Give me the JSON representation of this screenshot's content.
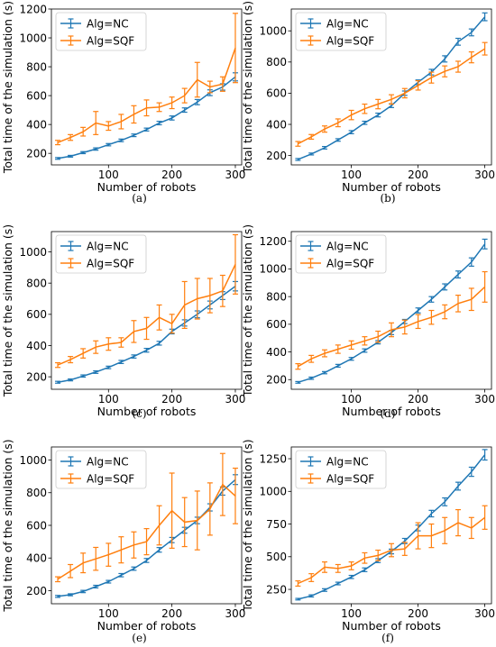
{
  "figure": {
    "background": "#ffffff"
  },
  "style": {
    "nc_color": "#1f77b4",
    "sqf_color": "#ff7f0e"
  },
  "chart_data": [
    {
      "panel": "a",
      "caption": "(a)",
      "type": "line",
      "xlabel": "Number of robots",
      "ylabel": "Total time of the simulation (s)",
      "xlim": [
        10,
        310
      ],
      "ylim": [
        120,
        1200
      ],
      "xticks": [
        100,
        200,
        300
      ],
      "yticks": [
        200,
        400,
        600,
        800,
        1000,
        1200
      ],
      "legend": {
        "position": "top-left",
        "entries": [
          "Alg=NC",
          "Alg=SQF"
        ]
      },
      "x": [
        20,
        40,
        60,
        80,
        100,
        120,
        140,
        160,
        180,
        200,
        220,
        240,
        260,
        280,
        300
      ],
      "series": [
        {
          "name": "Alg=NC",
          "values": [
            165,
            180,
            205,
            230,
            260,
            290,
            325,
            365,
            410,
            445,
            500,
            555,
            620,
            660,
            730
          ],
          "errors": [
            6,
            6,
            7,
            8,
            8,
            9,
            9,
            10,
            12,
            14,
            15,
            18,
            20,
            22,
            28
          ]
        },
        {
          "name": "Alg=SQF",
          "values": [
            275,
            310,
            350,
            410,
            390,
            420,
            470,
            515,
            520,
            550,
            600,
            710,
            660,
            680,
            930
          ],
          "errors": [
            15,
            20,
            30,
            80,
            30,
            50,
            60,
            55,
            30,
            40,
            50,
            120,
            40,
            50,
            240
          ]
        }
      ]
    },
    {
      "panel": "b",
      "caption": "(b)",
      "type": "line",
      "xlabel": "Number of robots",
      "ylabel": "Total time of the simulation (s)",
      "xlim": [
        10,
        310
      ],
      "ylim": [
        140,
        1140
      ],
      "xticks": [
        100,
        200,
        300
      ],
      "yticks": [
        200,
        400,
        600,
        800,
        1000
      ],
      "legend": {
        "position": "top-left",
        "entries": [
          "Alg=NC",
          "Alg=SQF"
        ]
      },
      "x": [
        20,
        40,
        60,
        80,
        100,
        120,
        140,
        160,
        180,
        200,
        220,
        240,
        260,
        280,
        300
      ],
      "series": [
        {
          "name": "Alg=NC",
          "values": [
            175,
            210,
            250,
            300,
            350,
            410,
            460,
            520,
            600,
            670,
            735,
            820,
            930,
            990,
            1090
          ],
          "errors": [
            6,
            6,
            8,
            8,
            10,
            10,
            12,
            12,
            14,
            15,
            18,
            20,
            22,
            22,
            25
          ]
        },
        {
          "name": "Alg=SQF",
          "values": [
            275,
            320,
            370,
            410,
            460,
            500,
            530,
            560,
            600,
            650,
            700,
            740,
            770,
            830,
            885
          ],
          "errors": [
            15,
            15,
            20,
            25,
            30,
            30,
            30,
            30,
            30,
            30,
            35,
            35,
            35,
            35,
            40
          ]
        }
      ]
    },
    {
      "panel": "c",
      "caption": "(c)",
      "type": "line",
      "xlabel": "Number of robots",
      "ylabel": "Total time of the simulation (s)",
      "xlim": [
        10,
        310
      ],
      "ylim": [
        120,
        1130
      ],
      "xticks": [
        100,
        200,
        300
      ],
      "yticks": [
        200,
        400,
        600,
        800,
        1000
      ],
      "legend": {
        "position": "top-left",
        "entries": [
          "Alg=NC",
          "Alg=SQF"
        ]
      },
      "x": [
        20,
        40,
        60,
        80,
        100,
        120,
        140,
        160,
        180,
        200,
        220,
        240,
        260,
        280,
        300
      ],
      "series": [
        {
          "name": "Alg=NC",
          "values": [
            165,
            180,
            205,
            230,
            260,
            295,
            330,
            370,
            415,
            490,
            545,
            600,
            660,
            720,
            780
          ],
          "errors": [
            6,
            6,
            7,
            8,
            8,
            10,
            10,
            12,
            12,
            15,
            20,
            22,
            25,
            25,
            30
          ]
        },
        {
          "name": "Alg=SQF",
          "values": [
            275,
            310,
            350,
            390,
            410,
            420,
            490,
            510,
            580,
            540,
            660,
            700,
            720,
            750,
            920
          ],
          "errors": [
            15,
            20,
            30,
            40,
            40,
            30,
            70,
            70,
            80,
            60,
            150,
            130,
            110,
            100,
            190
          ]
        }
      ]
    },
    {
      "panel": "d",
      "caption": "(d)",
      "type": "line",
      "xlabel": "Number of robots",
      "ylabel": "Total time of the simulation (s)",
      "xlim": [
        10,
        310
      ],
      "ylim": [
        130,
        1270
      ],
      "xticks": [
        100,
        200,
        300
      ],
      "yticks": [
        200,
        400,
        600,
        800,
        1000,
        1200
      ],
      "legend": {
        "position": "top-left",
        "entries": [
          "Alg=NC",
          "Alg=SQF"
        ]
      },
      "x": [
        20,
        40,
        60,
        80,
        100,
        120,
        140,
        160,
        180,
        200,
        220,
        240,
        260,
        280,
        300
      ],
      "series": [
        {
          "name": "Alg=NC",
          "values": [
            180,
            210,
            250,
            300,
            350,
            410,
            470,
            540,
            620,
            700,
            780,
            870,
            960,
            1050,
            1180
          ],
          "errors": [
            6,
            8,
            8,
            10,
            10,
            12,
            12,
            15,
            15,
            18,
            20,
            22,
            25,
            30,
            35
          ]
        },
        {
          "name": "Alg=SQF",
          "values": [
            295,
            350,
            390,
            420,
            450,
            480,
            510,
            560,
            580,
            620,
            650,
            690,
            750,
            780,
            870
          ],
          "errors": [
            20,
            25,
            25,
            30,
            30,
            30,
            40,
            50,
            50,
            50,
            50,
            50,
            60,
            80,
            110
          ]
        }
      ]
    },
    {
      "panel": "e",
      "caption": "(e)",
      "type": "line",
      "xlabel": "Number of robots",
      "ylabel": "Total time of the simulation (s)",
      "xlim": [
        10,
        310
      ],
      "ylim": [
        120,
        1080
      ],
      "xticks": [
        100,
        200,
        300
      ],
      "yticks": [
        200,
        400,
        600,
        800,
        1000
      ],
      "legend": {
        "position": "top-left",
        "entries": [
          "Alg=NC",
          "Alg=SQF"
        ]
      },
      "x": [
        20,
        40,
        60,
        80,
        100,
        120,
        140,
        160,
        180,
        200,
        220,
        240,
        260,
        280,
        300
      ],
      "series": [
        {
          "name": "Alg=NC",
          "values": [
            165,
            175,
            195,
            225,
            255,
            295,
            335,
            385,
            450,
            510,
            570,
            630,
            710,
            810,
            880
          ],
          "errors": [
            6,
            6,
            7,
            8,
            8,
            10,
            10,
            12,
            14,
            16,
            18,
            20,
            22,
            25,
            30
          ]
        },
        {
          "name": "Alg=SQF",
          "values": [
            270,
            320,
            370,
            395,
            420,
            450,
            480,
            500,
            600,
            690,
            620,
            630,
            700,
            850,
            780
          ],
          "errors": [
            15,
            40,
            60,
            70,
            70,
            80,
            80,
            80,
            120,
            230,
            150,
            180,
            160,
            190,
            170
          ]
        }
      ]
    },
    {
      "panel": "f",
      "caption": "(f)",
      "type": "line",
      "xlabel": "Number of robots",
      "ylabel": "Total time of the simulation (s)",
      "xlim": [
        10,
        310
      ],
      "ylim": [
        140,
        1340
      ],
      "xticks": [
        100,
        200,
        300
      ],
      "yticks": [
        250,
        500,
        750,
        1000,
        1250
      ],
      "legend": {
        "position": "top-left",
        "entries": [
          "Alg=NC",
          "Alg=SQF"
        ]
      },
      "x": [
        20,
        40,
        60,
        80,
        100,
        120,
        140,
        160,
        180,
        200,
        220,
        240,
        260,
        280,
        300
      ],
      "series": [
        {
          "name": "Alg=NC",
          "values": [
            175,
            200,
            245,
            295,
            345,
            400,
            470,
            540,
            620,
            720,
            830,
            920,
            1040,
            1150,
            1280
          ],
          "errors": [
            6,
            8,
            10,
            10,
            12,
            14,
            15,
            18,
            20,
            22,
            25,
            30,
            30,
            35,
            40
          ]
        },
        {
          "name": "Alg=SQF",
          "values": [
            295,
            340,
            420,
            410,
            430,
            490,
            510,
            550,
            560,
            660,
            660,
            700,
            760,
            720,
            800
          ],
          "errors": [
            20,
            30,
            40,
            30,
            30,
            40,
            40,
            50,
            50,
            100,
            90,
            100,
            100,
            80,
            90
          ]
        }
      ]
    }
  ]
}
